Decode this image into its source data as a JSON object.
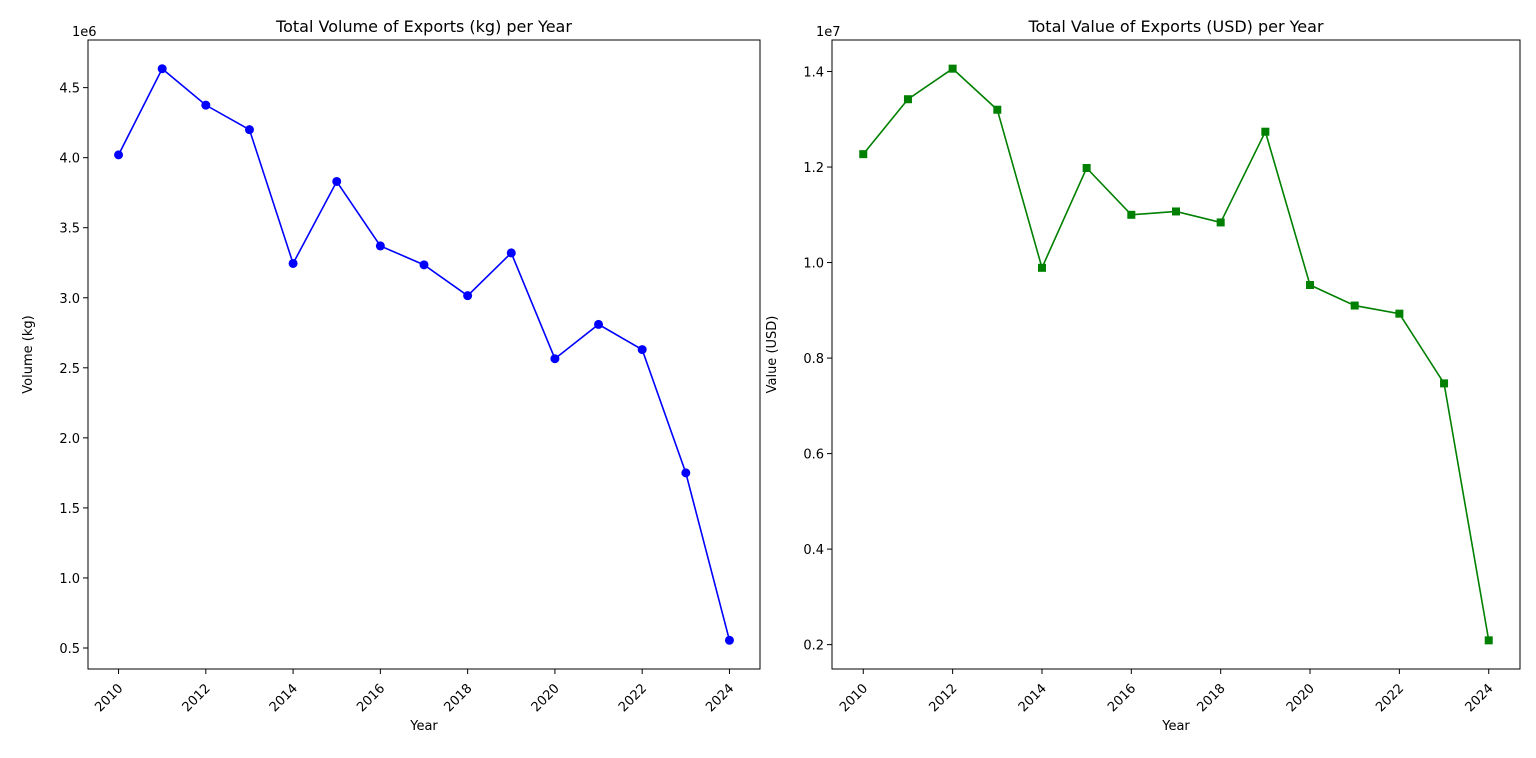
{
  "chart_data": [
    {
      "type": "line",
      "title": "Total Volume of Exports (kg) per Year",
      "xlabel": "Year",
      "ylabel": "Volume (kg)",
      "y_offset_label": "1e6",
      "x": [
        2010,
        2011,
        2012,
        2013,
        2014,
        2015,
        2016,
        2017,
        2018,
        2019,
        2020,
        2021,
        2022,
        2023,
        2024
      ],
      "series": [
        {
          "values": [
            4020000,
            4635000,
            4375000,
            4200000,
            3245000,
            3830000,
            3370000,
            3235000,
            3015000,
            3320000,
            2565000,
            2810000,
            2630000,
            1750000,
            555000
          ],
          "color": "#0000ff",
          "marker": "circle"
        }
      ],
      "xlim": [
        2009.3,
        2024.7
      ],
      "ylim": [
        350000,
        4840000
      ],
      "x_ticks": [
        "2010",
        "2012",
        "2014",
        "2016",
        "2018",
        "2020",
        "2022",
        "2024"
      ],
      "x_tick_rotation": 45,
      "y_ticks": [
        "0.5",
        "1.0",
        "1.5",
        "2.0",
        "2.5",
        "3.0",
        "3.5",
        "4.0",
        "4.5"
      ],
      "grid": false,
      "legend": "none"
    },
    {
      "type": "line",
      "title": "Total Value of Exports (USD) per Year",
      "xlabel": "Year",
      "ylabel": "Value (USD)",
      "y_offset_label": "1e7",
      "x": [
        2010,
        2011,
        2012,
        2013,
        2014,
        2015,
        2016,
        2017,
        2018,
        2019,
        2020,
        2021,
        2022,
        2023,
        2024
      ],
      "series": [
        {
          "values": [
            12270000,
            13420000,
            14060000,
            13200000,
            9890000,
            11980000,
            11000000,
            11070000,
            10840000,
            12740000,
            9530000,
            9100000,
            8930000,
            7470000,
            2090000
          ],
          "color": "#008000",
          "marker": "square"
        }
      ],
      "xlim": [
        2009.3,
        2024.7
      ],
      "ylim": [
        1490000,
        14660000
      ],
      "x_ticks": [
        "2010",
        "2012",
        "2014",
        "2016",
        "2018",
        "2020",
        "2022",
        "2024"
      ],
      "x_tick_rotation": 45,
      "y_ticks": [
        "0.2",
        "0.4",
        "0.6",
        "0.8",
        "1.0",
        "1.2",
        "1.4"
      ],
      "grid": false,
      "legend": "none"
    }
  ]
}
